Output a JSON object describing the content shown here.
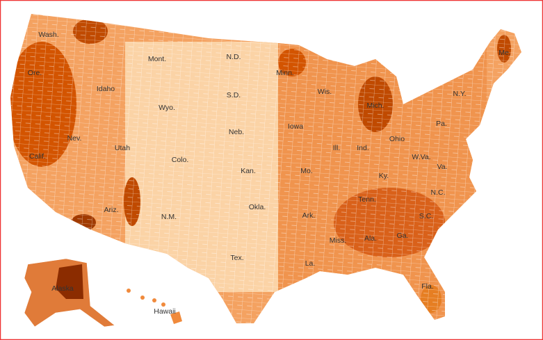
{
  "map": {
    "state_labels": [
      "Wash.",
      "Mont.",
      "N.D.",
      "Minn.",
      "Me.",
      "Ore.",
      "Idaho",
      "Wyo.",
      "S.D.",
      "Wis.",
      "Mich.",
      "N.Y.",
      "Pa.",
      "Neb.",
      "Iowa",
      "Nev.",
      "Utah",
      "Ohio",
      "Ill.",
      "Ind.",
      "W.Va.",
      "Va.",
      "Calif.",
      "Colo.",
      "Kan.",
      "Mo.",
      "Ky.",
      "N.C.",
      "Tenn.",
      "Okla.",
      "Ark.",
      "Ariz.",
      "N.M.",
      "S.C.",
      "Ala.",
      "Ga.",
      "Miss.",
      "Tex.",
      "La.",
      "Fla.",
      "Alaska",
      "Hawaii"
    ]
  }
}
